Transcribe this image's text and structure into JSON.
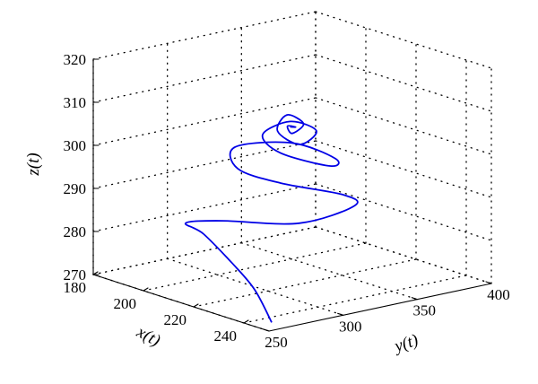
{
  "chart_data": {
    "type": "line",
    "projection": "3d",
    "grid": true,
    "xlabel": "x(t)",
    "ylabel": "y(t)",
    "zlabel": "z(t)",
    "xlim": [
      180,
      250
    ],
    "ylim": [
      250,
      400
    ],
    "zlim": [
      270,
      320
    ],
    "xticks": [
      "180",
      "200",
      "220",
      "240"
    ],
    "yticks": [
      "250",
      "300",
      "350",
      "400"
    ],
    "zticks": [
      "270",
      "280",
      "290",
      "300",
      "310",
      "320"
    ],
    "series": [
      {
        "color": "#0000e6",
        "note_points_xyz": [
          [
            244,
            262,
            270
          ],
          [
            236,
            264,
            276
          ],
          [
            226,
            266,
            280
          ],
          [
            212,
            270,
            284
          ],
          [
            198,
            282,
            283
          ],
          [
            199,
            305,
            282
          ],
          [
            213,
            333,
            282
          ],
          [
            228,
            345,
            288
          ],
          [
            234,
            327,
            293
          ],
          [
            225,
            300,
            296
          ],
          [
            214,
            290,
            298
          ],
          [
            207,
            300,
            301
          ],
          [
            213,
            328,
            301
          ],
          [
            225,
            337,
            299
          ],
          [
            233,
            320,
            300
          ],
          [
            225,
            300,
            303
          ],
          [
            215,
            305,
            305
          ],
          [
            216,
            322,
            307
          ],
          [
            224,
            326,
            306
          ],
          [
            225,
            313,
            304
          ],
          [
            218,
            310,
            306
          ],
          [
            217,
            318,
            309
          ],
          [
            223,
            319,
            308
          ],
          [
            222,
            313,
            306
          ],
          [
            219,
            315,
            307
          ],
          [
            221,
            317,
            307
          ],
          [
            220,
            315,
            307
          ]
        ]
      }
    ]
  }
}
